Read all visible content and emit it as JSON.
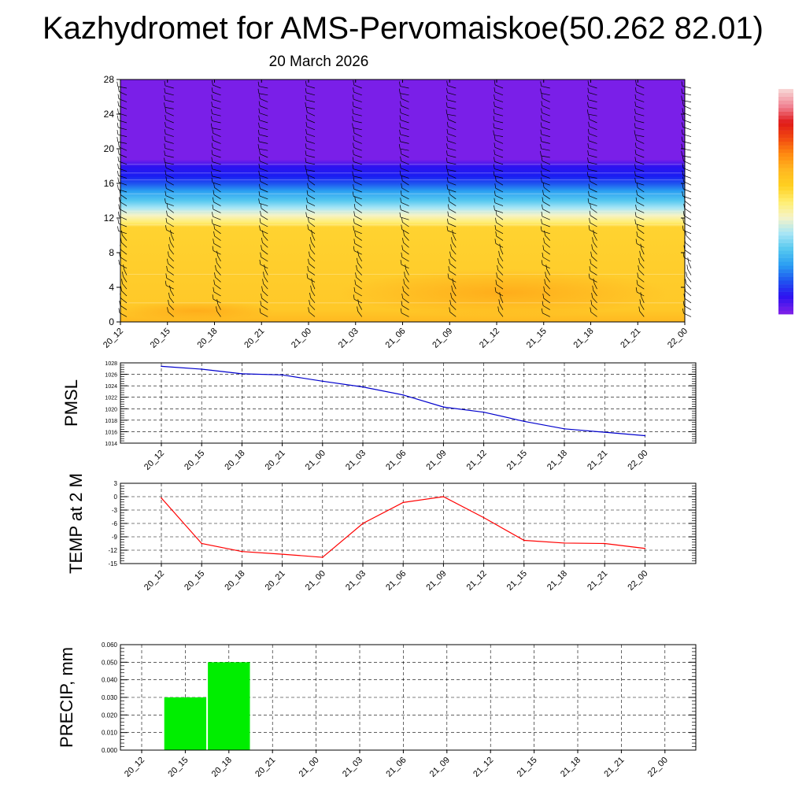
{
  "title": "Kazhydromet for AMS-Pervomaiskoe(50.262 82.01)",
  "subtitle": "20 March 2026",
  "time_labels": [
    "20_12",
    "20_15",
    "20_18",
    "20_21",
    "21_00",
    "21_03",
    "21_06",
    "21_09",
    "21_12",
    "21_15",
    "21_18",
    "21_21",
    "22_00"
  ],
  "chart_data": [
    {
      "type": "heatmap",
      "name": "vertical temperature cross-section with wind barbs",
      "title": "",
      "xlabel": "",
      "ylabel": "",
      "categories": [
        "20_12",
        "20_15",
        "20_18",
        "20_21",
        "21_00",
        "21_03",
        "21_06",
        "21_09",
        "21_12",
        "21_15",
        "21_18",
        "21_21",
        "22_00"
      ],
      "y_ticks": [
        0,
        4,
        8,
        12,
        16,
        20,
        24,
        28
      ],
      "ylim": [
        0,
        28
      ],
      "layers": [
        {
          "from": 0,
          "to": 1.5,
          "class": "warm-low"
        },
        {
          "from": 1.5,
          "to": 11,
          "class": "warm"
        },
        {
          "from": 11,
          "to": 12,
          "class": "pale-yellow"
        },
        {
          "from": 12,
          "to": 13.5,
          "class": "light-cyan"
        },
        {
          "from": 13.5,
          "to": 15.5,
          "class": "blue"
        },
        {
          "from": 15.5,
          "to": 18,
          "class": "deep-blue"
        },
        {
          "from": 18,
          "to": 28,
          "class": "violet"
        }
      ],
      "color_scale": [
        "#7a1fe8",
        "#2d12f0",
        "#1f55f0",
        "#2a9ff2",
        "#56c8f0",
        "#a8e6f5",
        "#f5f3c8",
        "#ffee70",
        "#ffd020",
        "#ffb820",
        "#ff8a10",
        "#f24a10",
        "#e01818",
        "#f08090",
        "#f7d0d0"
      ],
      "legend": "right"
    },
    {
      "type": "line",
      "ylabel": "PMSL",
      "categories": [
        "20_12",
        "20_15",
        "20_18",
        "20_21",
        "21_00",
        "21_03",
        "21_06",
        "21_09",
        "21_12",
        "21_15",
        "21_18",
        "21_21",
        "22_00"
      ],
      "values": [
        1027.4,
        1026.9,
        1026.1,
        1025.9,
        1024.8,
        1023.8,
        1022.4,
        1020.3,
        1019.4,
        1017.8,
        1016.5,
        1015.9,
        1015.3
      ],
      "y_ticks": [
        1014,
        1016,
        1018,
        1020,
        1022,
        1024,
        1026,
        1028
      ],
      "ylim": [
        1014,
        1028
      ],
      "grid": true,
      "color": "#0000cc"
    },
    {
      "type": "line",
      "ylabel": "TEMP at 2 M",
      "categories": [
        "20_12",
        "20_15",
        "20_18",
        "20_21",
        "21_00",
        "21_03",
        "21_06",
        "21_09",
        "21_12",
        "21_15",
        "21_18",
        "21_21",
        "22_00"
      ],
      "values": [
        -0.3,
        -10.5,
        -12.3,
        -12.9,
        -13.6,
        -6.0,
        -1.3,
        0.0,
        -4.7,
        -9.8,
        -10.4,
        -10.5,
        -11.6
      ],
      "y_ticks": [
        -15,
        -12,
        -9,
        -6,
        -3,
        0,
        3
      ],
      "ylim": [
        -15,
        3
      ],
      "grid": true,
      "color": "#ff0000"
    },
    {
      "type": "bar",
      "ylabel": "PRECIP, mm",
      "categories": [
        "20_12",
        "20_15",
        "20_18",
        "20_21",
        "21_00",
        "21_03",
        "21_06",
        "21_09",
        "21_12",
        "21_15",
        "21_18",
        "21_21",
        "22_00"
      ],
      "values": [
        0,
        0.03,
        0.05,
        0,
        0,
        0,
        0,
        0,
        0,
        0,
        0,
        0,
        0
      ],
      "y_ticks": [
        "0.000",
        "0.010",
        "0.020",
        "0.030",
        "0.040",
        "0.050",
        "0.060"
      ],
      "ylim": [
        0,
        0.06
      ],
      "grid": true,
      "color": "#00ee00"
    }
  ]
}
